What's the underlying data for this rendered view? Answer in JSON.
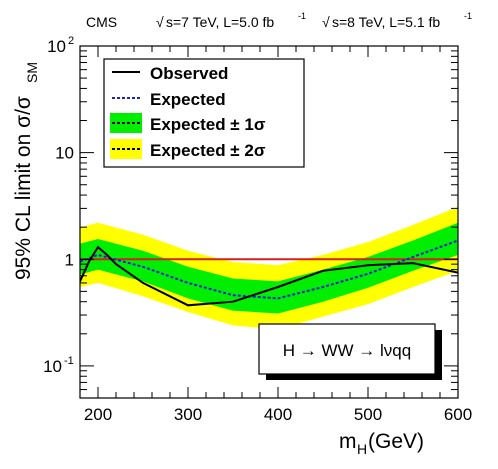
{
  "header": {
    "experiment": "CMS",
    "sqrt_symbol": "√",
    "run1_energy": "s=7 TeV, L=5.0 fb",
    "run2_energy": "s=8 TeV, L=5.1 fb",
    "lumi_exponent": "-1"
  },
  "axes": {
    "y_label_main": "95% CL limit on σ/σ",
    "y_label_sub": "SM",
    "x_label_main": "m",
    "x_label_sub": "H",
    "x_label_unit": " (GeV)",
    "y_tick_base": "10",
    "y_ticks": [
      {
        "value": 0.1,
        "base": "10",
        "exp": "-1"
      },
      {
        "value": 1,
        "base": "1",
        "exp": ""
      },
      {
        "value": 10,
        "base": "10",
        "exp": ""
      },
      {
        "value": 100,
        "base": "10",
        "exp": "2"
      }
    ],
    "x_ticks": [
      "200",
      "300",
      "400",
      "500",
      "600"
    ]
  },
  "legend": {
    "observed": "Observed",
    "expected": "Expected",
    "one_sigma": "Expected ± 1σ",
    "two_sigma": "Expected ± 2σ"
  },
  "annotation": "H → WW → lνqq",
  "colors": {
    "observed": "#000000",
    "expected": "#1f1fd6",
    "band_1sigma": "#00ee00",
    "band_2sigma": "#ffff00",
    "sm_line": "#d61f1f"
  },
  "chart_data": {
    "type": "line",
    "x_scale": "linear",
    "y_scale": "log",
    "xlim": [
      180,
      600
    ],
    "ylim": [
      0.05,
      100
    ],
    "grid": false,
    "legend_position": "top-left",
    "reference_line": 1,
    "observed": {
      "x": [
        180,
        190,
        200,
        210,
        220,
        250,
        300,
        350,
        400,
        450,
        500,
        550,
        600
      ],
      "y": [
        0.62,
        0.95,
        1.3,
        1.1,
        0.9,
        0.6,
        0.37,
        0.4,
        0.55,
        0.78,
        0.88,
        0.92,
        0.75
      ]
    },
    "expected": {
      "x": [
        180,
        200,
        250,
        300,
        350,
        400,
        450,
        500,
        550,
        600
      ],
      "y": [
        0.95,
        1.1,
        0.85,
        0.6,
        0.46,
        0.43,
        0.55,
        0.73,
        1.05,
        1.5
      ]
    },
    "band_1sigma": {
      "x": [
        180,
        200,
        250,
        300,
        350,
        400,
        450,
        500,
        550,
        600
      ],
      "low": [
        0.72,
        0.8,
        0.62,
        0.43,
        0.33,
        0.31,
        0.4,
        0.54,
        0.78,
        1.1
      ],
      "high": [
        1.4,
        1.55,
        1.2,
        0.85,
        0.66,
        0.62,
        0.8,
        1.05,
        1.5,
        2.2
      ]
    },
    "band_2sigma": {
      "x": [
        180,
        200,
        250,
        300,
        350,
        400,
        450,
        500,
        550,
        600
      ],
      "low": [
        0.55,
        0.6,
        0.45,
        0.32,
        0.24,
        0.22,
        0.29,
        0.38,
        0.55,
        0.78
      ],
      "high": [
        2.0,
        2.2,
        1.7,
        1.2,
        0.94,
        0.88,
        1.1,
        1.45,
        2.1,
        3.1
      ]
    }
  }
}
